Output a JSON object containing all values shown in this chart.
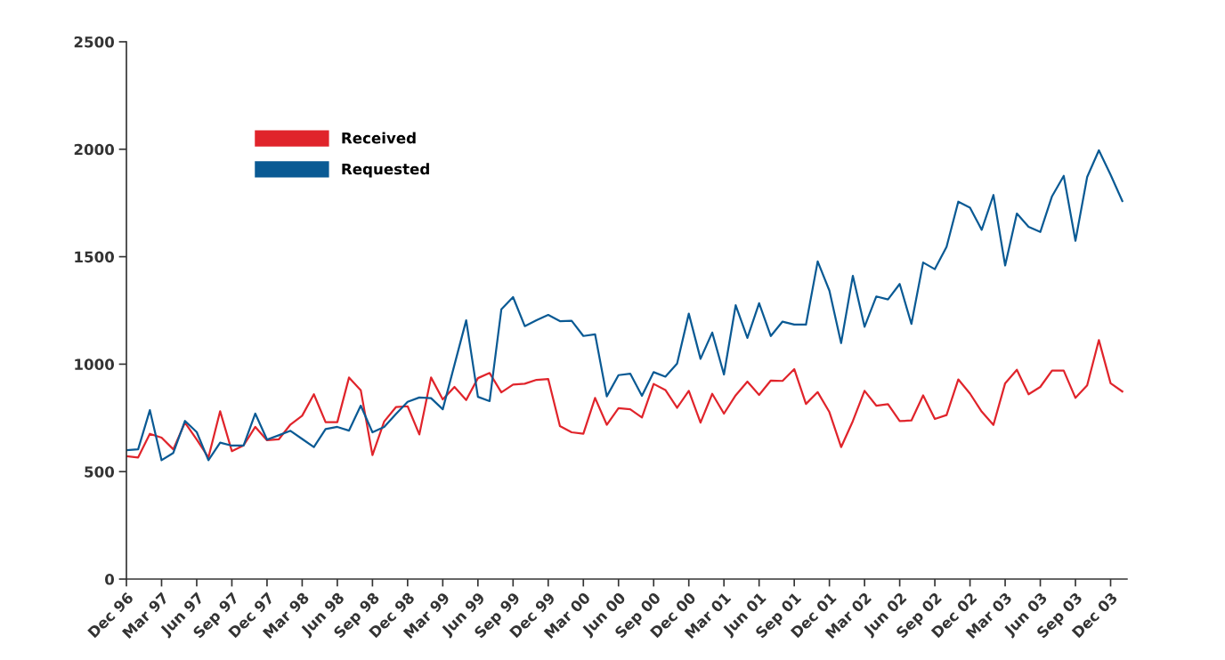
{
  "chart_data": {
    "type": "line",
    "categories": [
      "Dec 96",
      null,
      null,
      "Mar 97",
      null,
      null,
      "Jun 97",
      null,
      null,
      "Sep 97",
      null,
      null,
      "Dec 97",
      null,
      null,
      "Mar 98",
      null,
      null,
      "Jun 98",
      null,
      null,
      "Sep 98",
      null,
      null,
      "Dec 98",
      null,
      null,
      "Mar 99",
      null,
      null,
      "Jun 99",
      null,
      null,
      "Sep 99",
      null,
      null,
      "Dec 99",
      null,
      null,
      "Mar 00",
      null,
      null,
      "Jun 00",
      null,
      null,
      "Sep 00",
      null,
      null,
      "Dec 00",
      null,
      null,
      "Mar 01",
      null,
      null,
      "Jun 01",
      null,
      null,
      "Sep 01",
      null,
      null,
      "Dec 01",
      null,
      null,
      "Mar 02",
      null,
      null,
      "Jun 02",
      null,
      null,
      "Sep 02",
      null,
      null,
      "Dec 02",
      null,
      null,
      "Mar 03",
      null,
      null,
      "Jun 03",
      null,
      null,
      "Sep 03",
      null,
      null,
      "Dec 03",
      null
    ],
    "series": [
      {
        "name": "Received",
        "color": "#e0242b",
        "values": [
          572,
          566,
          676,
          658,
          604,
          728,
          649,
          566,
          781,
          595,
          622,
          708,
          646,
          650,
          719,
          760,
          860,
          730,
          730,
          938,
          879,
          577,
          733,
          800,
          804,
          673,
          938,
          836,
          894,
          833,
          935,
          959,
          869,
          905,
          909,
          927,
          931,
          712,
          683,
          676,
          843,
          718,
          795,
          790,
          752,
          908,
          880,
          797,
          876,
          728,
          862,
          770,
          855,
          919,
          857,
          924,
          922,
          977,
          815,
          870,
          777,
          614,
          735,
          876,
          807,
          814,
          735,
          738,
          855,
          745,
          763,
          929,
          863,
          779,
          717,
          911,
          974,
          860,
          894,
          970,
          970,
          843,
          901,
          1112,
          911,
          873
        ]
      },
      {
        "name": "Requested",
        "color": "#0a5a94",
        "values": [
          600,
          604,
          786,
          553,
          587,
          736,
          684,
          553,
          635,
          621,
          621,
          770,
          649,
          669,
          690,
          652,
          614,
          698,
          708,
          691,
          807,
          683,
          708,
          768,
          825,
          845,
          842,
          790,
          997,
          1204,
          848,
          828,
          1255,
          1312,
          1177,
          1204,
          1229,
          1200,
          1202,
          1131,
          1139,
          850,
          949,
          956,
          853,
          963,
          942,
          1003,
          1235,
          1025,
          1147,
          952,
          1274,
          1122,
          1284,
          1131,
          1198,
          1184,
          1184,
          1478,
          1342,
          1098,
          1411,
          1174,
          1315,
          1301,
          1373,
          1187,
          1473,
          1442,
          1546,
          1756,
          1728,
          1625,
          1787,
          1459,
          1701,
          1639,
          1615,
          1781,
          1876,
          1574,
          1871,
          1995,
          1881,
          1759
        ]
      }
    ],
    "ylim": [
      0,
      2500
    ],
    "yticks": [
      0,
      500,
      1000,
      1500,
      2000,
      2500
    ],
    "grid": false,
    "legend": "top left",
    "line_style": "solid",
    "marker": "none"
  }
}
